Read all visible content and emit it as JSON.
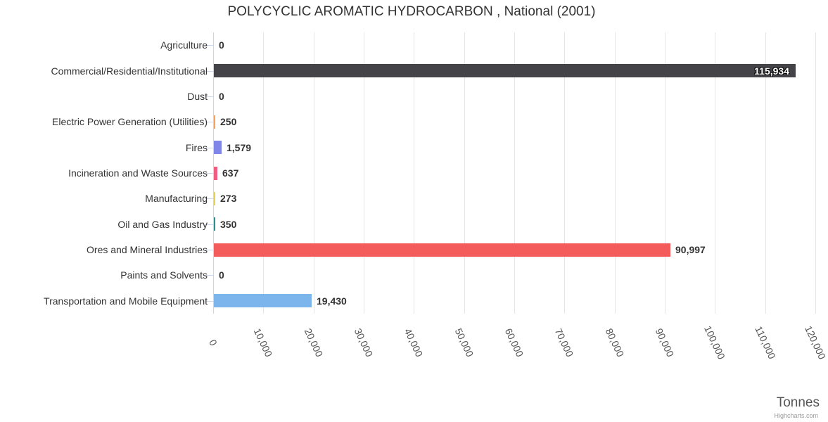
{
  "title": "POLYCYCLIC AROMATIC HYDROCARBON , National (2001)",
  "credit": "Highcharts.com",
  "chart_data": {
    "type": "bar",
    "orientation": "horizontal",
    "title": "POLYCYCLIC AROMATIC HYDROCARBON , National (2001)",
    "categories": [
      "Agriculture",
      "Commercial/Residential/Institutional",
      "Dust",
      "Electric Power Generation (Utilities)",
      "Fires",
      "Incineration and Waste Sources",
      "Manufacturing",
      "Oil and Gas Industry",
      "Ores and Mineral Industries",
      "Paints and Solvents",
      "Transportation and Mobile Equipment"
    ],
    "values": [
      0,
      115934,
      0,
      250,
      1579,
      637,
      273,
      350,
      90997,
      0,
      19430
    ],
    "value_labels": [
      "0",
      "115,934",
      "0",
      "250",
      "1,579",
      "637",
      "273",
      "350",
      "90,997",
      "0",
      "19,430"
    ],
    "bar_colors": [
      "#7cb5ec",
      "#434348",
      "#90ed7d",
      "#f7a35c",
      "#8085e9",
      "#f15c80",
      "#e4d354",
      "#2b908f",
      "#f45b5b",
      "#91e8e1",
      "#7cb5ec"
    ],
    "xlabel": "Tonnes",
    "ylabel": "",
    "xlim": [
      0,
      120000
    ],
    "x_tick_interval": 10000,
    "x_tick_labels": [
      "0",
      "10,000",
      "20,000",
      "30,000",
      "40,000",
      "50,000",
      "60,000",
      "70,000",
      "80,000",
      "90,000",
      "100,000",
      "110,000",
      "120,000"
    ],
    "grid": true,
    "legend": false,
    "colors": {
      "grid": "#e6e6e6",
      "axis_line": "#ccd6eb",
      "title_text": "#333333",
      "category_text": "#333333",
      "tick_label_text": "#555555",
      "data_label_text": "#333333",
      "inside_label_text": "#ffffff",
      "axis_title_text": "#555555",
      "credit_text": "#999999",
      "background": "#ffffff"
    }
  }
}
